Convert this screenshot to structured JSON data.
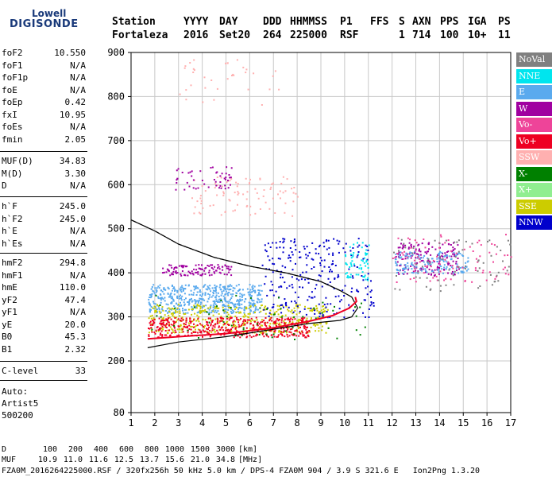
{
  "logo": {
    "line1": "Lowell",
    "line2": "DIGISONDE"
  },
  "header": {
    "labels": [
      "Station",
      "YYYY",
      "DAY",
      "DDD",
      "HHMMSS",
      "P1",
      "FFS",
      "S",
      "AXN",
      "PPS",
      "IGA",
      "PS"
    ],
    "values": [
      "Fortaleza",
      "2016",
      "Set20",
      "264",
      "225000",
      "RSF",
      "",
      "1",
      "714",
      "100",
      "10+",
      "11"
    ]
  },
  "parameters": {
    "group1": [
      {
        "name": "foF2",
        "value": "10.550"
      },
      {
        "name": "foF1",
        "value": "N/A"
      },
      {
        "name": "foF1p",
        "value": "N/A"
      },
      {
        "name": "foE",
        "value": "N/A"
      },
      {
        "name": "foEp",
        "value": "0.42"
      },
      {
        "name": "fxI",
        "value": "10.95"
      },
      {
        "name": "foEs",
        "value": "N/A"
      },
      {
        "name": "fmin",
        "value": "2.05"
      }
    ],
    "group2": [
      {
        "name": "MUF(D)",
        "value": "34.83"
      },
      {
        "name": "M(D)",
        "value": "3.30"
      },
      {
        "name": "D",
        "value": "N/A"
      }
    ],
    "group3": [
      {
        "name": "h`F",
        "value": "245.0"
      },
      {
        "name": "h`F2",
        "value": "245.0"
      },
      {
        "name": "h`E",
        "value": "N/A"
      },
      {
        "name": "h`Es",
        "value": "N/A"
      }
    ],
    "group4": [
      {
        "name": "hmF2",
        "value": "294.8"
      },
      {
        "name": "hmF1",
        "value": "N/A"
      },
      {
        "name": "hmE",
        "value": "110.0"
      },
      {
        "name": "yF2",
        "value": "47.4"
      },
      {
        "name": "yF1",
        "value": "N/A"
      },
      {
        "name": "yE",
        "value": "20.0"
      },
      {
        "name": "B0",
        "value": "45.3"
      },
      {
        "name": "B1",
        "value": "2.32"
      }
    ],
    "group5": [
      {
        "name": "C-level",
        "value": "33"
      }
    ]
  },
  "autoscaling": {
    "line1": "Auto:",
    "line2": "Artist5",
    "line3": "500200"
  },
  "legend": [
    {
      "label": "NoVal",
      "color": "#808080",
      "text_color": "#ffffff"
    },
    {
      "label": "NNE",
      "color": "#00e5ee",
      "text_color": "#ffffff"
    },
    {
      "label": "E",
      "color": "#5aaaee",
      "text_color": "#ffffff"
    },
    {
      "label": "W",
      "color": "#a000a0",
      "text_color": "#ffffff"
    },
    {
      "label": "Vo-",
      "color": "#ee4499",
      "text_color": "#ffffff"
    },
    {
      "label": "Vo+",
      "color": "#ee0022",
      "text_color": "#ffffff"
    },
    {
      "label": "SSW",
      "color": "#ffb0b0",
      "text_color": "#ffffff"
    },
    {
      "label": "X-",
      "color": "#008000",
      "text_color": "#ffffff"
    },
    {
      "label": "X+",
      "color": "#90ee90",
      "text_color": "#ffffff"
    },
    {
      "label": "SSE",
      "color": "#cccc00",
      "text_color": "#ffffff"
    },
    {
      "label": "NNW",
      "color": "#0000cc",
      "text_color": "#ffffff"
    }
  ],
  "footer": {
    "d_label": "D",
    "d_values": [
      "100",
      "200",
      "400",
      "600",
      "800",
      "1000",
      "1500",
      "3000"
    ],
    "d_unit": "[km]",
    "muf_label": "MUF",
    "muf_values": [
      "10.9",
      "11.0",
      "11.6",
      "12.5",
      "13.7",
      "15.6",
      "21.0",
      "34.8"
    ],
    "muf_unit": "[MHz]",
    "info": "FZA0M_2016264225000.RSF / 320fx256h 50 kHz 5.0 km / DPS-4 FZA0M 904 / 3.9 S 321.6 E   Ion2Png 1.3.20"
  },
  "chart_data": {
    "type": "scatter",
    "title": "",
    "xlabel": "",
    "ylabel": "",
    "xlim": [
      1,
      17
    ],
    "ylim": [
      80,
      900
    ],
    "x_ticks": [
      1,
      2,
      3,
      4,
      5,
      6,
      7,
      8,
      9,
      10,
      11,
      12,
      13,
      14,
      15,
      16,
      17
    ],
    "y_ticks": [
      80,
      200,
      300,
      400,
      500,
      600,
      700,
      800,
      900
    ],
    "grid": true,
    "clusters": [
      {
        "series": "E",
        "color": "#5aaaee",
        "x_range": [
          1.7,
          6.5
        ],
        "y_range": [
          310,
          375
        ],
        "count": 520
      },
      {
        "series": "SSE",
        "color": "#cccc00",
        "x_range": [
          1.7,
          9.3
        ],
        "y_range": [
          265,
          330
        ],
        "count": 420
      },
      {
        "series": "Vo+",
        "color": "#ee0022",
        "x_range": [
          1.7,
          8.5
        ],
        "y_range": [
          255,
          300
        ],
        "count": 430
      },
      {
        "series": "NNW",
        "color": "#0000cc",
        "x_range": [
          6.5,
          11.2
        ],
        "y_range": [
          300,
          480
        ],
        "count": 260
      },
      {
        "series": "W",
        "color": "#a000a0",
        "x_range": [
          2.3,
          5.2
        ],
        "y_range": [
          395,
          420
        ],
        "count": 110
      },
      {
        "series": "W",
        "color": "#a000a0",
        "x_range": [
          12.1,
          14.8
        ],
        "y_range": [
          395,
          470
        ],
        "count": 160
      },
      {
        "series": "E",
        "color": "#5aaaee",
        "x_range": [
          12.1,
          15.2
        ],
        "y_range": [
          400,
          450
        ],
        "count": 150
      },
      {
        "series": "NNE",
        "color": "#00e5ee",
        "x_range": [
          10.0,
          11.0
        ],
        "y_range": [
          380,
          470
        ],
        "count": 60
      },
      {
        "series": "Vo-",
        "color": "#ee4499",
        "x_range": [
          12.0,
          17.0
        ],
        "y_range": [
          380,
          490
        ],
        "count": 90
      },
      {
        "series": "SSW",
        "color": "#ffb0b0",
        "x_range": [
          3.5,
          8.0
        ],
        "y_range": [
          530,
          620
        ],
        "count": 90
      },
      {
        "series": "W",
        "color": "#a000a0",
        "x_range": [
          2.8,
          5.3
        ],
        "y_range": [
          590,
          645
        ],
        "count": 50
      },
      {
        "series": "SSW",
        "color": "#ffb0b0",
        "x_range": [
          3.0,
          7.5
        ],
        "y_range": [
          780,
          885
        ],
        "count": 35
      },
      {
        "series": "NoVal",
        "color": "#808080",
        "x_range": [
          12.0,
          17.0
        ],
        "y_range": [
          360,
          480
        ],
        "count": 70
      },
      {
        "series": "X-",
        "color": "#008000",
        "x_range": [
          1.7,
          11.0
        ],
        "y_range": [
          250,
          350
        ],
        "count": 60
      }
    ],
    "profile_curve": [
      [
        1.7,
        230
      ],
      [
        3,
        243
      ],
      [
        5,
        255
      ],
      [
        7,
        272
      ],
      [
        8.5,
        285
      ],
      [
        9.8,
        292
      ],
      [
        10.3,
        300
      ],
      [
        10.55,
        320
      ],
      [
        10.3,
        345
      ],
      [
        9.8,
        360
      ],
      [
        9.0,
        380
      ],
      [
        7.5,
        400
      ],
      [
        6.0,
        415
      ],
      [
        4.5,
        435
      ],
      [
        3.0,
        465
      ],
      [
        2.0,
        495
      ],
      [
        1.0,
        520
      ]
    ],
    "trace_curve": [
      [
        1.7,
        250
      ],
      [
        3,
        255
      ],
      [
        5,
        262
      ],
      [
        7,
        275
      ],
      [
        8.5,
        290
      ],
      [
        9.5,
        303
      ],
      [
        10.2,
        320
      ],
      [
        10.5,
        335
      ],
      [
        10.45,
        345
      ]
    ]
  }
}
